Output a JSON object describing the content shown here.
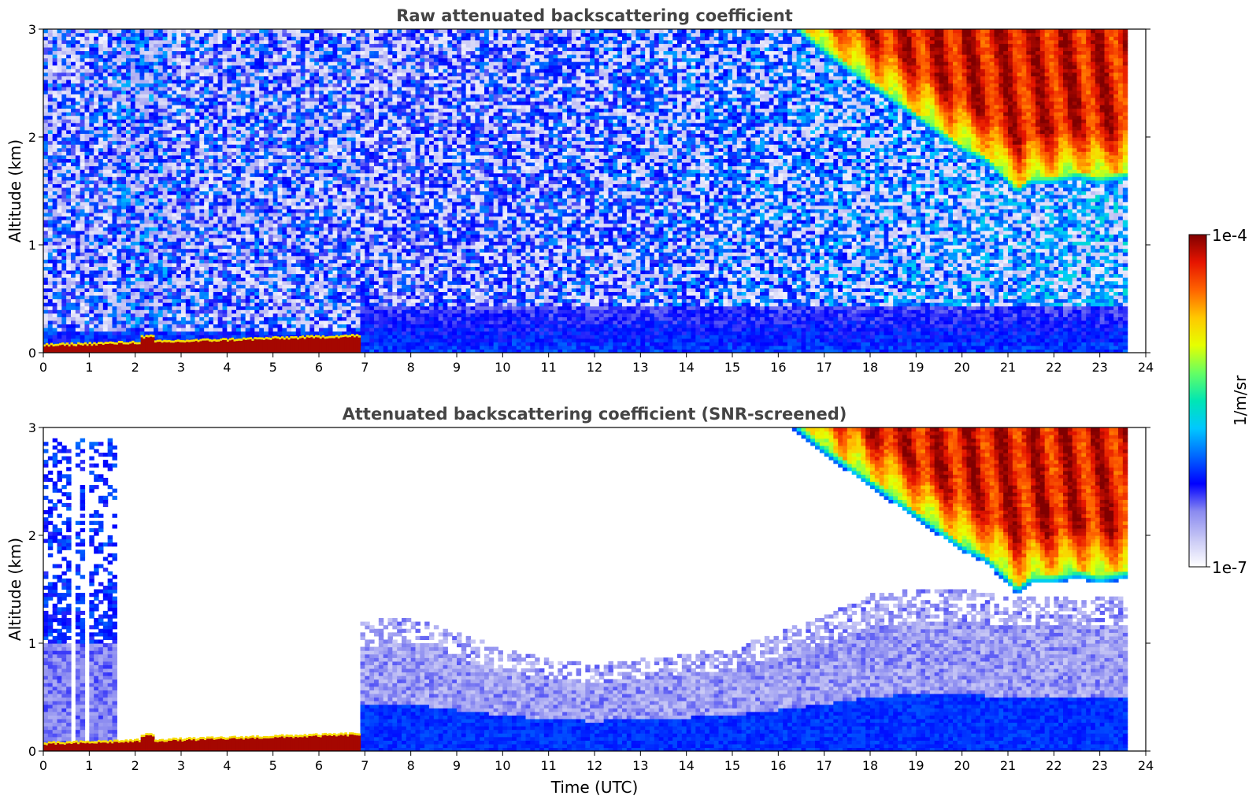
{
  "chart_data": [
    {
      "type": "heatmap",
      "title": "Raw attenuated backscattering coefficient",
      "xlabel": "",
      "ylabel": "Altitude (km)",
      "xlim": [
        0,
        24
      ],
      "ylim": [
        0,
        3
      ],
      "x_ticks": [
        "0",
        "1",
        "2",
        "3",
        "4",
        "5",
        "6",
        "7",
        "8",
        "9",
        "10",
        "11",
        "12",
        "13",
        "14",
        "15",
        "16",
        "17",
        "18",
        "19",
        "20",
        "21",
        "22",
        "23",
        "24"
      ],
      "y_ticks": [
        "0",
        "1",
        "2",
        "3"
      ],
      "data_extent_time": [
        0,
        23.6
      ],
      "features": {
        "surface_layer": {
          "time": [
            0,
            6.9
          ],
          "altitude_top": [
            0.05,
            0.2
          ],
          "level": "high"
        },
        "lower_layer_after_7": {
          "time": [
            6.9,
            23.6
          ],
          "altitude": [
            0,
            0.45
          ],
          "level": "low"
        },
        "elevated_layer": {
          "time": [
            17.5,
            23.6
          ],
          "altitude": [
            0.2,
            0.35
          ],
          "level": "low-medium"
        },
        "cloud_top_descending": {
          "time": [
            16.3,
            17,
            18,
            19,
            20,
            20.5,
            21,
            21.2,
            21.5,
            22,
            22.5,
            23,
            23.6
          ],
          "cloud_base_km": [
            3.0,
            2.75,
            2.45,
            2.15,
            1.85,
            1.75,
            1.55,
            1.45,
            1.55,
            1.55,
            1.6,
            1.55,
            1.6
          ],
          "level": "high"
        }
      }
    },
    {
      "type": "heatmap",
      "title": "Attenuated backscattering coefficient (SNR-screened)",
      "xlabel": "Time (UTC)",
      "ylabel": "Altitude (km)",
      "xlim": [
        0,
        24
      ],
      "ylim": [
        0,
        3
      ],
      "x_ticks": [
        "0",
        "1",
        "2",
        "3",
        "4",
        "5",
        "6",
        "7",
        "8",
        "9",
        "10",
        "11",
        "12",
        "13",
        "14",
        "15",
        "16",
        "17",
        "18",
        "19",
        "20",
        "21",
        "22",
        "23",
        "24"
      ],
      "y_ticks": [
        "0",
        "1",
        "2",
        "3"
      ],
      "data_extent_time": [
        0,
        23.6
      ],
      "features": {
        "early_column": {
          "time": [
            0,
            1.65
          ],
          "altitude": [
            0,
            2.9
          ],
          "level": "low"
        },
        "surface_layer": {
          "time": [
            0,
            6.9
          ],
          "altitude_top": [
            0.05,
            0.2
          ],
          "level": "high"
        },
        "boundary_layer_top": {
          "time": [
            7,
            8,
            9,
            10,
            11,
            12,
            13,
            14,
            15,
            16,
            17,
            18,
            19,
            20,
            21,
            22,
            23,
            23.6
          ],
          "altitude_km": [
            1.2,
            1.25,
            1.1,
            0.95,
            0.85,
            0.8,
            0.85,
            0.9,
            0.95,
            1.1,
            1.25,
            1.45,
            1.5,
            1.5,
            1.45,
            1.45,
            1.45,
            1.45
          ],
          "level": "low"
        },
        "cloud_top_descending": {
          "time": [
            16.3,
            17,
            18,
            19,
            20,
            20.5,
            21,
            21.2,
            21.5,
            22,
            22.5,
            23,
            23.6
          ],
          "cloud_base_km": [
            3.0,
            2.75,
            2.45,
            2.15,
            1.85,
            1.75,
            1.55,
            1.45,
            1.55,
            1.55,
            1.6,
            1.55,
            1.6
          ],
          "level": "high"
        }
      }
    }
  ],
  "colorbar": {
    "label": "1/m/sr",
    "max_label": "1e-4",
    "min_label": "1e-7",
    "colormap": [
      "#ffffff",
      "#c8c8f5",
      "#8a8af0",
      "#0000ff",
      "#0066ff",
      "#00c8ff",
      "#00e6b4",
      "#64ff64",
      "#e6ff00",
      "#ffc800",
      "#ff6400",
      "#e61400",
      "#800000"
    ]
  }
}
